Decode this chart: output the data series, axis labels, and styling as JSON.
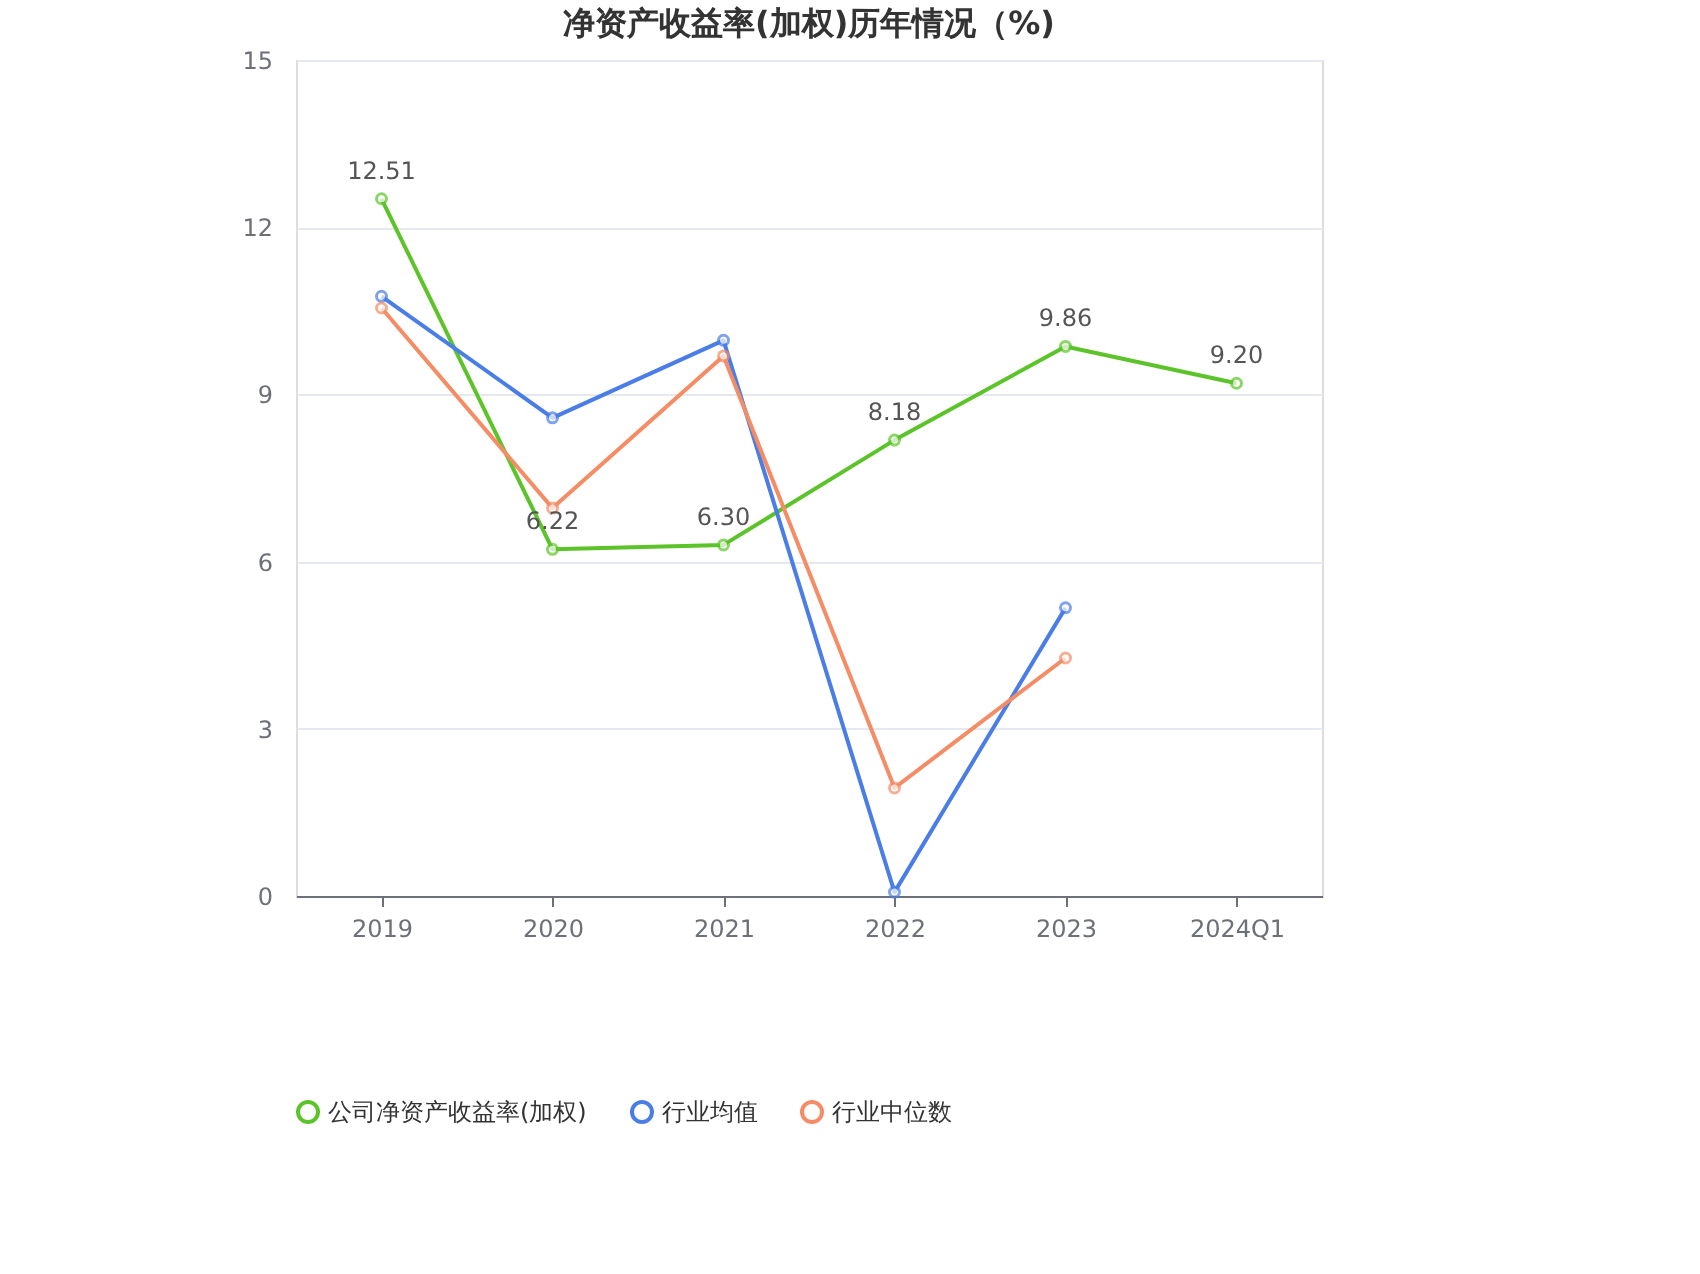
{
  "chart_data": {
    "type": "line",
    "title": "净资产收益率(加权)历年情况（%)",
    "categories": [
      "2019",
      "2020",
      "2021",
      "2022",
      "2023",
      "2024Q1"
    ],
    "series": [
      {
        "name": "公司净资产收益率(加权)",
        "color": "#5cc42a",
        "values": [
          12.51,
          6.22,
          6.3,
          8.18,
          9.86,
          9.2
        ],
        "value_labels": [
          "12.51",
          "6.22",
          "6.30",
          "8.18",
          "9.86",
          "9.20"
        ]
      },
      {
        "name": "行业均值",
        "color": "#4a7ee6",
        "values": [
          10.76,
          8.58,
          9.97,
          0.07,
          5.17,
          null
        ]
      },
      {
        "name": "行业中位数",
        "color": "#f48c66",
        "values": [
          10.55,
          6.96,
          9.69,
          1.94,
          4.27,
          null
        ]
      }
    ],
    "ylim": [
      0,
      15
    ],
    "yticks": [
      0,
      3,
      6,
      9,
      12,
      15
    ],
    "grid": "y",
    "legend": "bottom",
    "marker": "circle",
    "line_style": "solid"
  }
}
